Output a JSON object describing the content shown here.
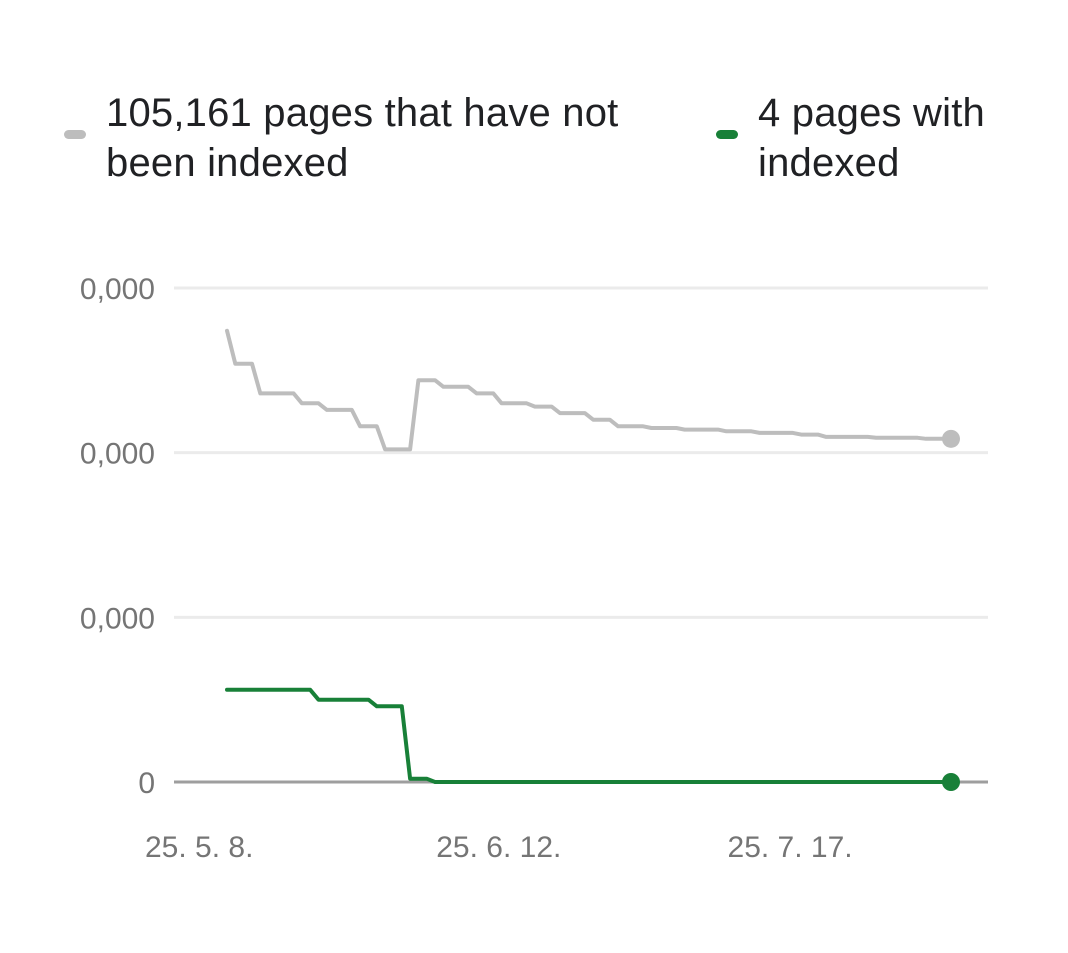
{
  "legend": [
    {
      "label": "105,161 pages that have not been indexed",
      "color": "#bdbdbd"
    },
    {
      "label": "4 pages with indexed",
      "color": "#188038"
    }
  ],
  "chart_data": {
    "type": "line",
    "y_ticks": [
      "0,000",
      "0,000",
      "0,000",
      "0"
    ],
    "x_ticks": [
      "25. 5. 8.",
      "25. 6. 12.",
      "25. 7. 17."
    ],
    "x_tick_day_index": [
      0,
      35,
      70
    ],
    "ylim": [
      0,
      150
    ],
    "grid": true,
    "legend_position": "top",
    "series": [
      {
        "name": "105,161 pages that have not been indexed",
        "color": "#bdbdbd",
        "points": [
          [
            0,
            137
          ],
          [
            1,
            127
          ],
          [
            3,
            127
          ],
          [
            4,
            118
          ],
          [
            8,
            118
          ],
          [
            9,
            115
          ],
          [
            11,
            115
          ],
          [
            12,
            113
          ],
          [
            15,
            113
          ],
          [
            16,
            108
          ],
          [
            18,
            108
          ],
          [
            19,
            101
          ],
          [
            22,
            101
          ],
          [
            23,
            122
          ],
          [
            25,
            122
          ],
          [
            26,
            120
          ],
          [
            29,
            120
          ],
          [
            30,
            118
          ],
          [
            32,
            118
          ],
          [
            33,
            115
          ],
          [
            36,
            115
          ],
          [
            37,
            114
          ],
          [
            39,
            114
          ],
          [
            40,
            112
          ],
          [
            43,
            112
          ],
          [
            44,
            110
          ],
          [
            46,
            110
          ],
          [
            47,
            108
          ],
          [
            50,
            108
          ],
          [
            51,
            107.5
          ],
          [
            54,
            107.5
          ],
          [
            55,
            107
          ],
          [
            59,
            107
          ],
          [
            60,
            106.5
          ],
          [
            63,
            106.5
          ],
          [
            64,
            106
          ],
          [
            68,
            106
          ],
          [
            69,
            105.5
          ],
          [
            71,
            105.5
          ],
          [
            72,
            104.8
          ],
          [
            77,
            104.8
          ],
          [
            78,
            104.5
          ],
          [
            83,
            104.5
          ],
          [
            84,
            104.2
          ],
          [
            87,
            104.2
          ]
        ]
      },
      {
        "name": "4 pages with indexed",
        "color": "#188038",
        "points": [
          [
            0,
            28
          ],
          [
            10,
            28
          ],
          [
            11,
            25
          ],
          [
            17,
            25
          ],
          [
            18,
            23
          ],
          [
            21,
            23
          ],
          [
            22,
            1
          ],
          [
            24,
            1
          ],
          [
            25,
            0
          ],
          [
            87,
            0
          ]
        ]
      }
    ]
  }
}
